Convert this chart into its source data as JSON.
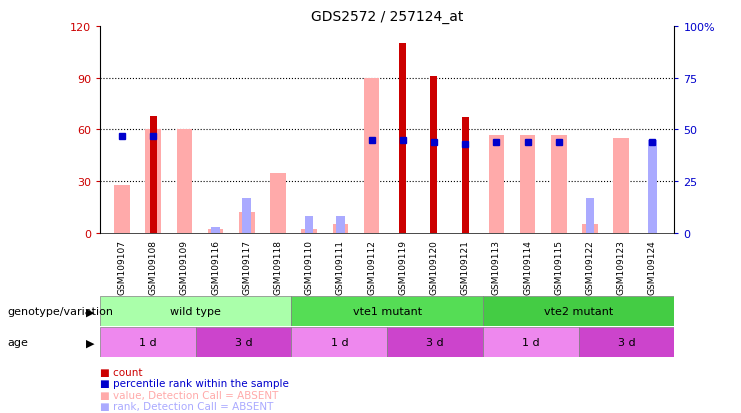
{
  "title": "GDS2572 / 257124_at",
  "samples": [
    "GSM109107",
    "GSM109108",
    "GSM109109",
    "GSM109116",
    "GSM109117",
    "GSM109118",
    "GSM109110",
    "GSM109111",
    "GSM109112",
    "GSM109119",
    "GSM109120",
    "GSM109121",
    "GSM109113",
    "GSM109114",
    "GSM109115",
    "GSM109122",
    "GSM109123",
    "GSM109124"
  ],
  "count_values": [
    0,
    68,
    0,
    0,
    0,
    0,
    0,
    0,
    0,
    110,
    91,
    67,
    0,
    0,
    0,
    0,
    0,
    0
  ],
  "rank_values": [
    47,
    47,
    0,
    0,
    0,
    0,
    0,
    0,
    45,
    45,
    44,
    43,
    44,
    44,
    44,
    0,
    0,
    44
  ],
  "value_absent": [
    28,
    60,
    60,
    2,
    12,
    35,
    2,
    5,
    90,
    0,
    0,
    0,
    57,
    57,
    57,
    5,
    55,
    0
  ],
  "rank_absent": [
    0,
    0,
    0,
    3,
    17,
    0,
    8,
    8,
    0,
    0,
    0,
    0,
    0,
    0,
    0,
    17,
    0,
    45
  ],
  "ylim_left": [
    0,
    120
  ],
  "ylim_right": [
    0,
    100
  ],
  "yticks_left": [
    0,
    30,
    60,
    90,
    120
  ],
  "yticks_right": [
    0,
    25,
    50,
    75,
    100
  ],
  "ytick_right_labels": [
    "0",
    "25",
    "50",
    "75",
    "100%"
  ],
  "color_count": "#cc0000",
  "color_rank": "#0000cc",
  "color_value_absent": "#ffaaaa",
  "color_rank_absent": "#aaaaff",
  "bar_width": 0.5,
  "groups": [
    {
      "label": "wild type",
      "start": 0,
      "end": 6,
      "color": "#aaffaa"
    },
    {
      "label": "vte1 mutant",
      "start": 6,
      "end": 12,
      "color": "#55dd55"
    },
    {
      "label": "vte2 mutant",
      "start": 12,
      "end": 18,
      "color": "#44cc44"
    }
  ],
  "age_groups": [
    {
      "label": "1 d",
      "start": 0,
      "end": 3,
      "color": "#ee88ee"
    },
    {
      "label": "3 d",
      "start": 3,
      "end": 6,
      "color": "#cc44cc"
    },
    {
      "label": "1 d",
      "start": 6,
      "end": 9,
      "color": "#ee88ee"
    },
    {
      "label": "3 d",
      "start": 9,
      "end": 12,
      "color": "#cc44cc"
    },
    {
      "label": "1 d",
      "start": 12,
      "end": 15,
      "color": "#ee88ee"
    },
    {
      "label": "3 d",
      "start": 15,
      "end": 18,
      "color": "#cc44cc"
    }
  ],
  "genotype_label": "genotype/variation",
  "age_label": "age",
  "legend_items": [
    {
      "label": "count",
      "color": "#cc0000"
    },
    {
      "label": "percentile rank within the sample",
      "color": "#0000cc"
    },
    {
      "label": "value, Detection Call = ABSENT",
      "color": "#ffaaaa"
    },
    {
      "label": "rank, Detection Call = ABSENT",
      "color": "#aaaaff"
    }
  ],
  "grid_lines": [
    30,
    60,
    90
  ],
  "xtick_bg_color": "#bbbbbb",
  "rank_scale": 1.2
}
